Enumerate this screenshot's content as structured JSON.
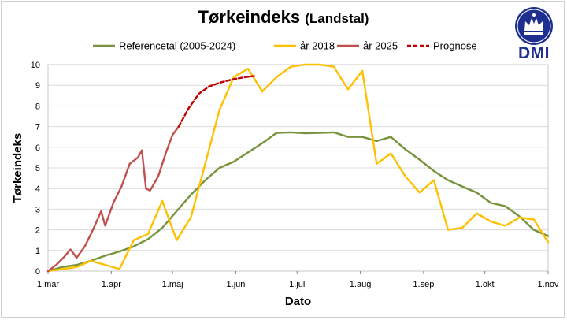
{
  "title": "Tørkeindeks",
  "subtitle": "(Landstal)",
  "logo_text": "DMI",
  "colors": {
    "reference": "#77933c",
    "year2018": "#ffc000",
    "year2025": "#c0504d",
    "forecast": "#c00000",
    "grid": "#d9d9d9",
    "brand": "#1f2f8f"
  },
  "chart_data": {
    "type": "line",
    "xlabel": "Dato",
    "ylabel": "Tørkeindeks",
    "x_range": [
      "1.mar",
      "1.nov"
    ],
    "ylim": [
      0,
      10
    ],
    "grid": true,
    "legend_position": "top",
    "x_ticks": [
      "1.mar",
      "1.apr",
      "1.maj",
      "1.jun",
      "1.jul",
      "1.aug",
      "1.sep",
      "1.okt",
      "1.nov"
    ],
    "y_ticks": [
      "0",
      "1",
      "2",
      "3",
      "4",
      "5",
      "6",
      "7",
      "8",
      "9",
      "10"
    ],
    "series": [
      {
        "name": "Referencetal (2005-2024)",
        "style": "solid",
        "points": [
          [
            "1.mar",
            0.0
          ],
          [
            "8.mar",
            0.2
          ],
          [
            "15.mar",
            0.3
          ],
          [
            "22.mar",
            0.5
          ],
          [
            "29.mar",
            0.75
          ],
          [
            "5.apr",
            0.95
          ],
          [
            "12.apr",
            1.2
          ],
          [
            "19.apr",
            1.55
          ],
          [
            "26.apr",
            2.1
          ],
          [
            "3.maj",
            2.9
          ],
          [
            "10.maj",
            3.7
          ],
          [
            "17.maj",
            4.4
          ],
          [
            "24.maj",
            5.0
          ],
          [
            "31.maj",
            5.3
          ],
          [
            "7.jun",
            5.75
          ],
          [
            "14.jun",
            6.2
          ],
          [
            "21.jun",
            6.7
          ],
          [
            "28.jun",
            6.72
          ],
          [
            "5.jul",
            6.68
          ],
          [
            "12.jul",
            6.7
          ],
          [
            "19.jul",
            6.72
          ],
          [
            "26.jul",
            6.5
          ],
          [
            "2.aug",
            6.5
          ],
          [
            "9.aug",
            6.3
          ],
          [
            "16.aug",
            6.5
          ],
          [
            "23.aug",
            5.9
          ],
          [
            "30.aug",
            5.4
          ],
          [
            "6.sep",
            4.85
          ],
          [
            "13.sep",
            4.4
          ],
          [
            "20.sep",
            4.1
          ],
          [
            "27.sep",
            3.8
          ],
          [
            "4.okt",
            3.3
          ],
          [
            "11.okt",
            3.15
          ],
          [
            "18.okt",
            2.65
          ],
          [
            "25.okt",
            2.0
          ],
          [
            "1.nov",
            1.7
          ]
        ]
      },
      {
        "name": "år 2018",
        "style": "solid",
        "points": [
          [
            "1.mar",
            0.0
          ],
          [
            "8.mar",
            0.1
          ],
          [
            "15.mar",
            0.2
          ],
          [
            "22.mar",
            0.5
          ],
          [
            "29.mar",
            0.3
          ],
          [
            "5.apr",
            0.1
          ],
          [
            "12.apr",
            1.5
          ],
          [
            "19.apr",
            1.8
          ],
          [
            "26.apr",
            3.4
          ],
          [
            "3.maj",
            1.5
          ],
          [
            "10.maj",
            2.6
          ],
          [
            "17.maj",
            5.2
          ],
          [
            "24.maj",
            7.8
          ],
          [
            "31.maj",
            9.4
          ],
          [
            "7.jun",
            9.8
          ],
          [
            "14.jun",
            8.7
          ],
          [
            "21.jun",
            9.4
          ],
          [
            "28.jun",
            9.9
          ],
          [
            "5.jul",
            10.0
          ],
          [
            "12.jul",
            10.0
          ],
          [
            "19.jul",
            9.9
          ],
          [
            "26.jul",
            8.8
          ],
          [
            "2.aug",
            9.7
          ],
          [
            "9.aug",
            5.2
          ],
          [
            "16.aug",
            5.7
          ],
          [
            "23.aug",
            4.6
          ],
          [
            "30.aug",
            3.8
          ],
          [
            "6.sep",
            4.4
          ],
          [
            "13.sep",
            2.0
          ],
          [
            "20.sep",
            2.1
          ],
          [
            "27.sep",
            2.8
          ],
          [
            "4.okt",
            2.4
          ],
          [
            "11.okt",
            2.2
          ],
          [
            "18.okt",
            2.6
          ],
          [
            "25.okt",
            2.5
          ],
          [
            "1.nov",
            1.4
          ]
        ]
      },
      {
        "name": "år 2025",
        "style": "solid",
        "points": [
          [
            "1.mar",
            0.0
          ],
          [
            "5.mar",
            0.3
          ],
          [
            "9.mar",
            0.7
          ],
          [
            "12.mar",
            1.05
          ],
          [
            "15.mar",
            0.65
          ],
          [
            "19.mar",
            1.2
          ],
          [
            "23.mar",
            2.0
          ],
          [
            "27.mar",
            2.9
          ],
          [
            "29.mar",
            2.2
          ],
          [
            "2.apr",
            3.3
          ],
          [
            "6.apr",
            4.1
          ],
          [
            "10.apr",
            5.2
          ],
          [
            "14.apr",
            5.5
          ],
          [
            "16.apr",
            5.85
          ],
          [
            "18.apr",
            4.0
          ],
          [
            "20.apr",
            3.9
          ],
          [
            "24.apr",
            4.6
          ],
          [
            "28.apr",
            5.8
          ],
          [
            "1.maj",
            6.6
          ],
          [
            "4.maj",
            7.0
          ]
        ]
      },
      {
        "name": "Prognose",
        "style": "dashed",
        "points": [
          [
            "4.maj",
            7.0
          ],
          [
            "9.maj",
            7.9
          ],
          [
            "14.maj",
            8.6
          ],
          [
            "19.maj",
            8.95
          ],
          [
            "25.maj",
            9.15
          ],
          [
            "31.maj",
            9.3
          ],
          [
            "6.jun",
            9.4
          ],
          [
            "10.jun",
            9.45
          ]
        ]
      }
    ]
  }
}
